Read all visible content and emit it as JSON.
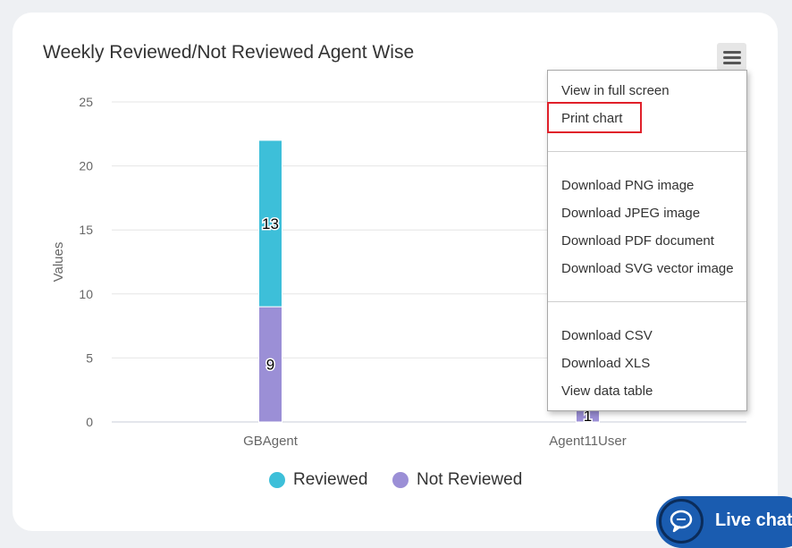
{
  "chart_data": {
    "type": "bar",
    "stacked": true,
    "title": "Weekly Reviewed/Not Reviewed Agent Wise",
    "ylabel": "Values",
    "xlabel": "",
    "categories": [
      "GBAgent",
      "Agent11User"
    ],
    "ylim": [
      0,
      25
    ],
    "yticks": [
      0,
      5,
      10,
      15,
      20,
      25
    ],
    "grid": true,
    "legend_position": "bottom-center",
    "series": [
      {
        "name": "Reviewed",
        "values": [
          13,
          0
        ],
        "data_labels": [
          "13",
          ""
        ],
        "color": "#3dbfd9"
      },
      {
        "name": "Not Reviewed",
        "values": [
          9,
          1
        ],
        "data_labels": [
          "9",
          "1"
        ],
        "color": "#9b8fd6"
      }
    ]
  },
  "export_menu": {
    "groups": [
      [
        "View in full screen",
        "Print chart"
      ],
      [
        "Download PNG image",
        "Download JPEG image",
        "Download PDF document",
        "Download SVG vector image"
      ],
      [
        "Download CSV",
        "Download XLS",
        "View data table"
      ]
    ],
    "highlighted_item": "Print chart"
  },
  "livechat": {
    "label": "Live chat"
  },
  "icons": {
    "menu": "hamburger-menu-icon",
    "chat": "chat-bubble-icon"
  },
  "colors": {
    "highlight": "#e0202a",
    "livechat": "#1a5cb0"
  }
}
